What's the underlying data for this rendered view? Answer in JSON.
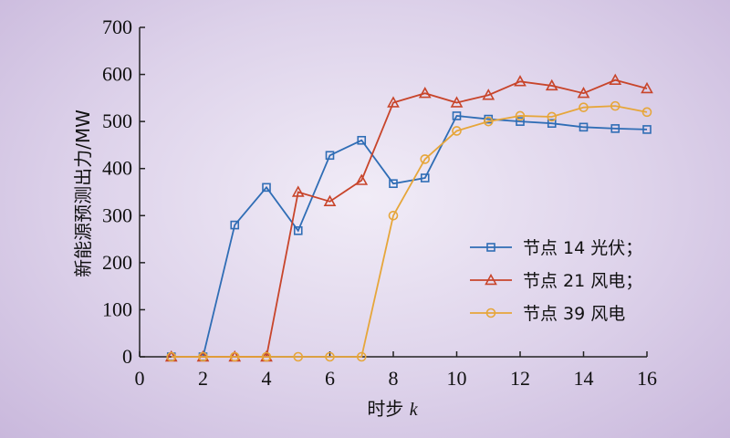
{
  "chart_data": {
    "type": "line",
    "title": "",
    "xlabel": "时步 k",
    "xlabel_main": "时步 ",
    "xlabel_var": "k",
    "ylabel": "新能源预测出力/MW",
    "xlim": [
      0,
      16
    ],
    "ylim": [
      0,
      700
    ],
    "xticks": [
      0,
      2,
      4,
      6,
      8,
      10,
      12,
      14,
      16
    ],
    "yticks": [
      0,
      100,
      200,
      300,
      400,
      500,
      600,
      700
    ],
    "x": [
      1,
      2,
      3,
      4,
      5,
      6,
      7,
      8,
      9,
      10,
      11,
      12,
      13,
      14,
      15,
      16
    ],
    "grid": false,
    "legend_position": "lower-right",
    "series": [
      {
        "name": "节点 14 光伏；",
        "color": "#2f6db5",
        "marker": "square",
        "values": [
          0,
          0,
          280,
          360,
          268,
          428,
          460,
          368,
          380,
          512,
          505,
          500,
          496,
          488,
          485,
          483
        ]
      },
      {
        "name": "节点 21 风电；",
        "color": "#c8452b",
        "marker": "triangle",
        "values": [
          0,
          0,
          0,
          0,
          350,
          330,
          375,
          540,
          560,
          540,
          556,
          585,
          576,
          560,
          588,
          570
        ]
      },
      {
        "name": "节点 39 风电",
        "color": "#e6a63a",
        "marker": "circle",
        "values": [
          0,
          0,
          0,
          0,
          0,
          0,
          0,
          300,
          420,
          480,
          500,
          512,
          510,
          530,
          533,
          520
        ]
      }
    ]
  }
}
